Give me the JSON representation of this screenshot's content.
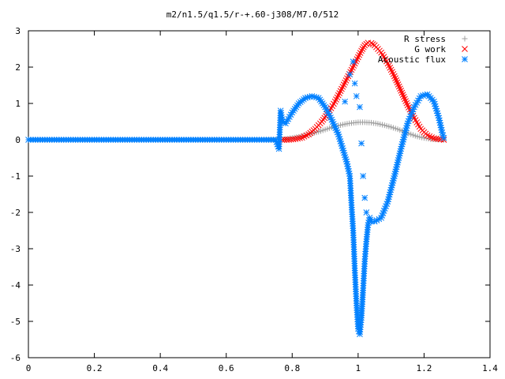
{
  "chart_data": {
    "type": "scatter",
    "title": "m2/n1.5/q1.5/r-+.60-j308/M7.0/512",
    "xlabel": "",
    "ylabel": "",
    "xlim": [
      0,
      1.4
    ],
    "ylim": [
      -6,
      3
    ],
    "x_ticks": [
      0,
      0.2,
      0.4,
      0.6,
      0.8,
      1,
      1.2,
      1.4
    ],
    "y_ticks": [
      -6,
      -5,
      -4,
      -3,
      -2,
      -1,
      0,
      1,
      2,
      3
    ],
    "x_tick_labels": [
      "0",
      "0.2",
      "0.4",
      "0.6",
      "0.8",
      "1",
      "1.2",
      "1.4"
    ],
    "y_tick_labels": [
      "-6",
      "-5",
      "-4",
      "-3",
      "-2",
      "-1",
      "0",
      "1",
      "2",
      "3"
    ],
    "grid": false,
    "legend_position": "top-right",
    "series": [
      {
        "name": "R stress",
        "marker": "plus",
        "color": "#a0a0a0",
        "points": [
          [
            0,
            0
          ],
          [
            0.1,
            0
          ],
          [
            0.2,
            0
          ],
          [
            0.3,
            0
          ],
          [
            0.4,
            0
          ],
          [
            0.5,
            0
          ],
          [
            0.6,
            0
          ],
          [
            0.7,
            0
          ],
          [
            0.76,
            0
          ],
          [
            0.78,
            0.02
          ],
          [
            0.8,
            0.05
          ],
          [
            0.82,
            0.08
          ],
          [
            0.84,
            0.12
          ],
          [
            0.86,
            0.17
          ],
          [
            0.88,
            0.22
          ],
          [
            0.9,
            0.28
          ],
          [
            0.92,
            0.34
          ],
          [
            0.94,
            0.39
          ],
          [
            0.96,
            0.43
          ],
          [
            0.98,
            0.46
          ],
          [
            1.0,
            0.48
          ],
          [
            1.02,
            0.48
          ],
          [
            1.04,
            0.47
          ],
          [
            1.06,
            0.44
          ],
          [
            1.08,
            0.4
          ],
          [
            1.1,
            0.35
          ],
          [
            1.12,
            0.29
          ],
          [
            1.14,
            0.22
          ],
          [
            1.16,
            0.15
          ],
          [
            1.18,
            0.09
          ],
          [
            1.2,
            0.05
          ],
          [
            1.22,
            0.02
          ],
          [
            1.24,
            0.01
          ],
          [
            1.26,
            0
          ]
        ]
      },
      {
        "name": "G work",
        "marker": "cross",
        "color": "#ff0000",
        "points": [
          [
            0.77,
            0
          ],
          [
            0.79,
            0
          ],
          [
            0.81,
            0.02
          ],
          [
            0.83,
            0.06
          ],
          [
            0.85,
            0.15
          ],
          [
            0.87,
            0.3
          ],
          [
            0.89,
            0.5
          ],
          [
            0.91,
            0.75
          ],
          [
            0.93,
            1.05
          ],
          [
            0.95,
            1.4
          ],
          [
            0.97,
            1.75
          ],
          [
            0.99,
            2.1
          ],
          [
            1.01,
            2.45
          ],
          [
            1.02,
            2.6
          ],
          [
            1.03,
            2.67
          ],
          [
            1.04,
            2.66
          ],
          [
            1.05,
            2.6
          ],
          [
            1.07,
            2.4
          ],
          [
            1.09,
            2.1
          ],
          [
            1.11,
            1.75
          ],
          [
            1.13,
            1.35
          ],
          [
            1.15,
            0.95
          ],
          [
            1.17,
            0.6
          ],
          [
            1.19,
            0.3
          ],
          [
            1.21,
            0.12
          ],
          [
            1.23,
            0.04
          ],
          [
            1.25,
            0.01
          ],
          [
            1.26,
            0
          ]
        ]
      },
      {
        "name": "Acoustic flux",
        "marker": "star",
        "color": "#0080ff",
        "points": [
          [
            0,
            0
          ],
          [
            0.05,
            0
          ],
          [
            0.1,
            0
          ],
          [
            0.15,
            0
          ],
          [
            0.2,
            0
          ],
          [
            0.25,
            0
          ],
          [
            0.3,
            0
          ],
          [
            0.35,
            0
          ],
          [
            0.4,
            0
          ],
          [
            0.45,
            0
          ],
          [
            0.5,
            0
          ],
          [
            0.55,
            0
          ],
          [
            0.6,
            0
          ],
          [
            0.65,
            0
          ],
          [
            0.7,
            0
          ],
          [
            0.75,
            0
          ],
          [
            0.76,
            -0.25
          ],
          [
            0.765,
            0.8
          ],
          [
            0.77,
            0.5
          ],
          [
            0.78,
            0.45
          ],
          [
            0.8,
            0.75
          ],
          [
            0.82,
            1.0
          ],
          [
            0.84,
            1.15
          ],
          [
            0.86,
            1.2
          ],
          [
            0.88,
            1.15
          ],
          [
            0.9,
            0.9
          ],
          [
            0.92,
            0.55
          ],
          [
            0.94,
            0.15
          ],
          [
            0.955,
            -0.3
          ],
          [
            0.965,
            -0.6
          ],
          [
            0.975,
            -1.0
          ],
          [
            0.98,
            -1.8
          ],
          [
            0.985,
            -2.5
          ],
          [
            0.99,
            -3.6
          ],
          [
            0.995,
            -4.5
          ],
          [
            1.0,
            -5.2
          ],
          [
            1.005,
            -5.35
          ],
          [
            1.01,
            -4.9
          ],
          [
            1.015,
            -4.15
          ],
          [
            1.02,
            -3.35
          ],
          [
            1.025,
            -2.8
          ],
          [
            1.03,
            -2.35
          ],
          [
            1.035,
            -2.15
          ],
          [
            1.04,
            -2.25
          ],
          [
            1.05,
            -2.25
          ],
          [
            1.07,
            -2.15
          ],
          [
            1.09,
            -1.7
          ],
          [
            1.11,
            -1.0
          ],
          [
            1.13,
            -0.25
          ],
          [
            1.15,
            0.45
          ],
          [
            1.17,
            0.9
          ],
          [
            1.19,
            1.2
          ],
          [
            1.21,
            1.25
          ],
          [
            1.23,
            1.05
          ],
          [
            1.245,
            0.6
          ],
          [
            1.255,
            0.2
          ],
          [
            1.26,
            0.05
          ],
          [
            0.96,
            1.05
          ],
          [
            0.975,
            1.8
          ],
          [
            0.985,
            2.15
          ],
          [
            0.99,
            1.55
          ],
          [
            0.995,
            1.2
          ],
          [
            1.005,
            0.9
          ],
          [
            1.01,
            -0.1
          ],
          [
            1.015,
            -1.0
          ],
          [
            1.02,
            -1.6
          ],
          [
            1.025,
            -2.0
          ]
        ]
      }
    ]
  }
}
